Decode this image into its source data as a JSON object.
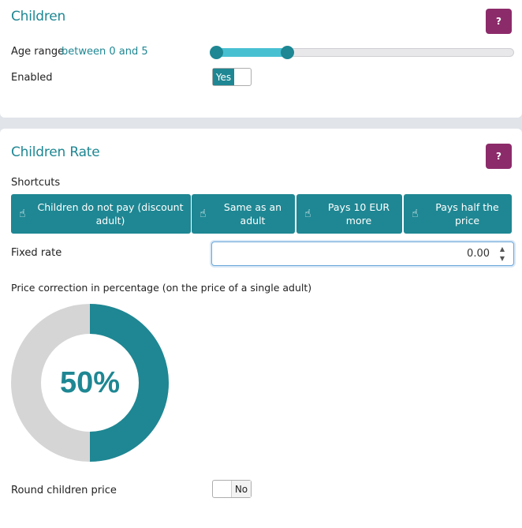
{
  "children_section": {
    "title": "Children",
    "help_label": "?",
    "age_range_label": "Age range",
    "age_range_value": "between 0 and 5",
    "age_range_min": 0,
    "age_range_max": 5,
    "enabled_label": "Enabled",
    "enabled_toggle_label": "Yes",
    "enabled": true
  },
  "children_rate_section": {
    "title": "Children Rate",
    "help_label": "?",
    "shortcuts_label": "Shortcuts",
    "shortcuts": [
      {
        "label": "Children do not pay (discount adult)",
        "icon": "pointing-hand-icon"
      },
      {
        "label": "Same as an adult",
        "icon": "pointing-hand-icon"
      },
      {
        "label": "Pays 10 EUR more",
        "icon": "pointing-hand-icon"
      },
      {
        "label": "Pays half the price",
        "icon": "pointing-hand-icon"
      }
    ],
    "fixed_rate_label": "Fixed rate",
    "fixed_rate_value": "0.00",
    "price_correction_label": "Price correction in percentage (on the price of a single adult)",
    "price_correction_text": "50%",
    "price_correction_percent": 50,
    "round_label": "Round children price",
    "round_toggle_label": "No",
    "round_enabled": false
  },
  "colors": {
    "accent": "#1e8793",
    "slider_fill": "#47c0d2",
    "help_button": "#8c2b6a",
    "donut_remainder": "#d5d5d5"
  }
}
